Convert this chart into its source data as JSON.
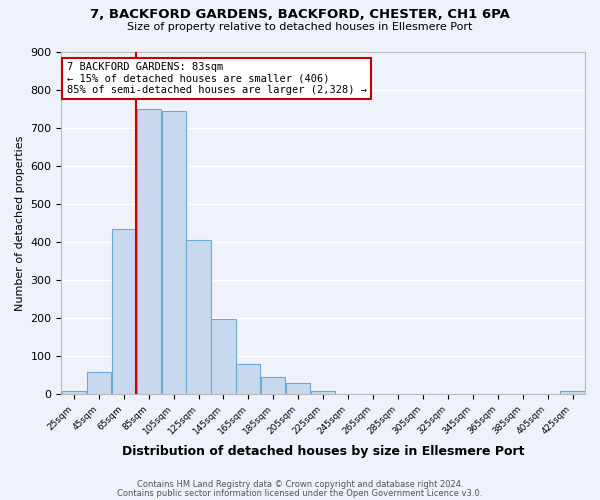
{
  "title1": "7, BACKFORD GARDENS, BACKFORD, CHESTER, CH1 6PA",
  "title2": "Size of property relative to detached houses in Ellesmere Port",
  "xlabel": "Distribution of detached houses by size in Ellesmere Port",
  "ylabel": "Number of detached properties",
  "bin_labels": [
    "25sqm",
    "45sqm",
    "65sqm",
    "85sqm",
    "105sqm",
    "125sqm",
    "145sqm",
    "165sqm",
    "185sqm",
    "205sqm",
    "225sqm",
    "245sqm",
    "265sqm",
    "285sqm",
    "305sqm",
    "325sqm",
    "345sqm",
    "365sqm",
    "385sqm",
    "405sqm",
    "425sqm"
  ],
  "bar_values": [
    10,
    60,
    435,
    750,
    745,
    405,
    198,
    80,
    45,
    30,
    10,
    0,
    0,
    0,
    0,
    0,
    0,
    0,
    0,
    0,
    10
  ],
  "bar_color": "#c8d9ef",
  "bar_edgecolor": "#6aaad4",
  "ylim": [
    0,
    900
  ],
  "yticks": [
    0,
    100,
    200,
    300,
    400,
    500,
    600,
    700,
    800,
    900
  ],
  "property_line_color": "#cc0000",
  "annotation_text": "7 BACKFORD GARDENS: 83sqm\n← 15% of detached houses are smaller (406)\n85% of semi-detached houses are larger (2,328) →",
  "annotation_box_edgecolor": "#cc0000",
  "background_color": "#eef2fa",
  "grid_color": "#ffffff",
  "footer_line1": "Contains HM Land Registry data © Crown copyright and database right 2024.",
  "footer_line2": "Contains public sector information licensed under the Open Government Licence v3.0."
}
